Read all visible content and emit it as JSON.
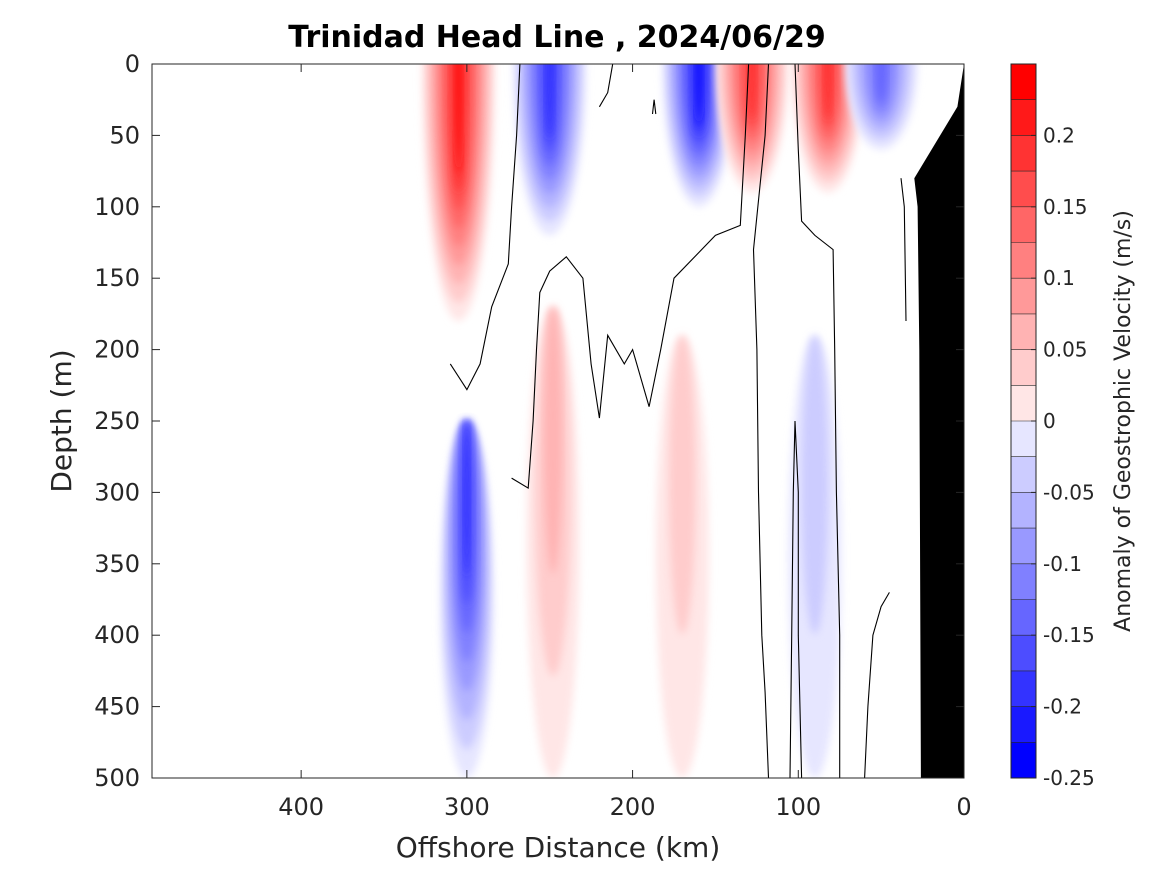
{
  "chart_data": {
    "type": "heatmap",
    "subtype": "filled-contour section",
    "title": "Trinidad Head Line , 2024/06/29",
    "xlabel": "Offshore Distance (km)",
    "ylabel": "Depth (m)",
    "colorbar_label": "Anomaly of Geostrophic Velocity (m/s)",
    "xlim": [
      490,
      0
    ],
    "x_reversed": true,
    "ylim": [
      0,
      500
    ],
    "y_reversed": true,
    "xticks": [
      400,
      300,
      200,
      100,
      0
    ],
    "yticks": [
      0,
      50,
      100,
      150,
      200,
      250,
      300,
      350,
      400,
      450,
      500
    ],
    "clim": [
      -0.25,
      0.25
    ],
    "colorbar_ticks": [
      0.2,
      0.15,
      0.1,
      0.05,
      0,
      -0.05,
      -0.1,
      -0.15,
      -0.2,
      -0.25
    ],
    "colorbar_tick_labels": [
      "0.2",
      "0.15",
      "0.1",
      "0.05",
      "0",
      "-0.05",
      "-0.1",
      "-0.15",
      "-0.2",
      "-0.25"
    ],
    "colormap": "blue-white-red, 20 levels",
    "colors": {
      "positive": "#ff0000",
      "negative": "#0000ff",
      "zero": "#ffffff",
      "bathymetry": "#000000",
      "contour": "#000000"
    },
    "data_extent_km": [
      310,
      0
    ],
    "zero_contour": true,
    "features": [
      {
        "sign": "positive",
        "x": 305,
        "depth_top": 0,
        "depth_bottom": 180,
        "peak": 0.22
      },
      {
        "sign": "negative",
        "x": 250,
        "depth_top": 0,
        "depth_bottom": 120,
        "peak": -0.21
      },
      {
        "sign": "negative",
        "x": 160,
        "depth_top": 0,
        "depth_bottom": 100,
        "peak": -0.22
      },
      {
        "sign": "positive",
        "x": 128,
        "depth_top": 0,
        "depth_bottom": 90,
        "peak": 0.21
      },
      {
        "sign": "positive",
        "x": 82,
        "depth_top": 0,
        "depth_bottom": 90,
        "peak": 0.19
      },
      {
        "sign": "negative",
        "x": 50,
        "depth_top": 0,
        "depth_bottom": 60,
        "peak": -0.14
      },
      {
        "sign": "negative",
        "x": 300,
        "depth_top": 250,
        "depth_bottom": 500,
        "peak": -0.2
      },
      {
        "sign": "positive",
        "x": 248,
        "depth_top": 170,
        "depth_bottom": 500,
        "peak": 0.08
      },
      {
        "sign": "positive",
        "x": 170,
        "depth_top": 190,
        "depth_bottom": 500,
        "peak": 0.04
      },
      {
        "sign": "negative",
        "x": 90,
        "depth_top": 190,
        "depth_bottom": 500,
        "peak": -0.04
      }
    ]
  }
}
